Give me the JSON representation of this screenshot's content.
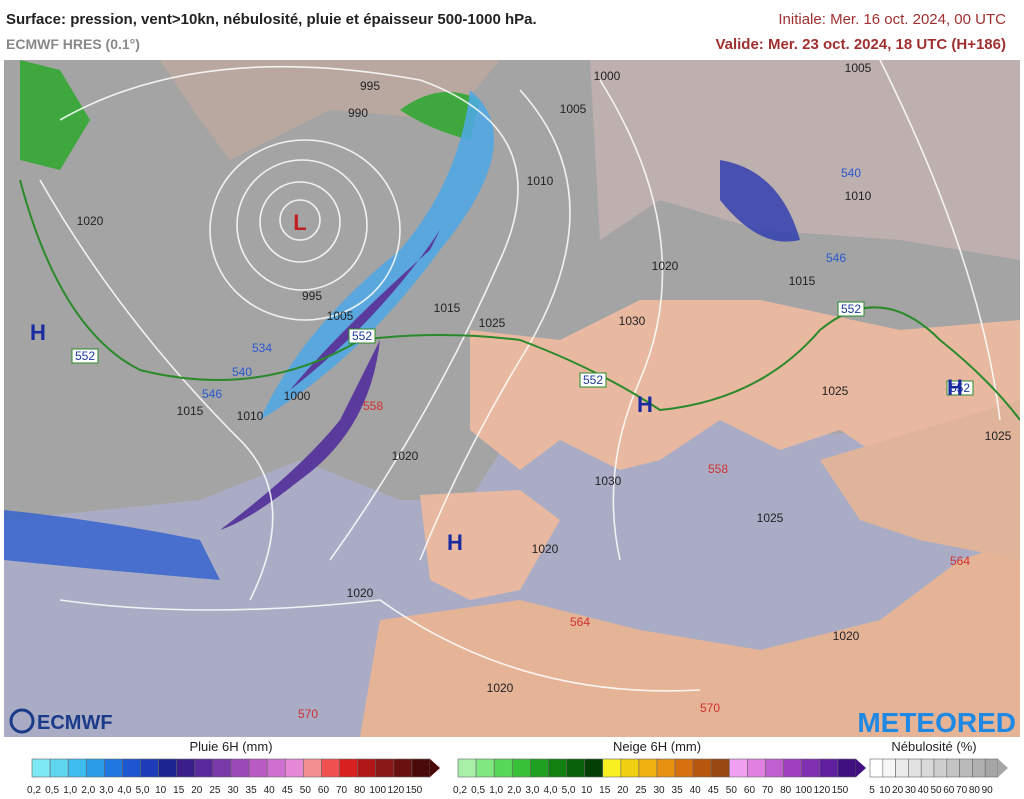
{
  "header": {
    "title": "Surface: pression, vent>10kn, nébulosité, pluie et épaisseur 500-1000 hPa.",
    "model": "ECMWF HRES (0.1°)",
    "initial": "Initiale: Mer. 16 oct. 2024, 00 UTC",
    "valid": "Valide: Mer. 23 oct. 2024, 18 UTC (H+186)"
  },
  "map": {
    "pressure_labels": [
      "995",
      "990",
      "1000",
      "1005",
      "1005",
      "1010",
      "1020",
      "1020",
      "1015",
      "995",
      "1015",
      "1025",
      "1030",
      "1005",
      "1010",
      "1015",
      "1010",
      "1000",
      "1020",
      "1030",
      "1025",
      "1025",
      "1020",
      "1020",
      "1020",
      "1020",
      "1025"
    ],
    "thickness_labels": [
      "552",
      "546",
      "540",
      "534",
      "552",
      "558",
      "552",
      "552",
      "546",
      "540",
      "558",
      "564",
      "564",
      "570",
      "570",
      "552"
    ],
    "centers": [
      "H",
      "H",
      "H",
      "H",
      "L"
    ]
  },
  "logos": {
    "left": "ECMWF",
    "right": "METEORED"
  },
  "legends": [
    {
      "title": "Pluie 6H (mm)",
      "labels": [
        "0,2",
        "0,5",
        "1,0",
        "2,0",
        "3,0",
        "4,0",
        "5,0",
        "10",
        "15",
        "20",
        "25",
        "30",
        "35",
        "40",
        "45",
        "50",
        "60",
        "70",
        "80",
        "100",
        "120",
        "150"
      ],
      "colors": [
        "#7fe8f5",
        "#5fd6f0",
        "#3dbdf0",
        "#2a9ce8",
        "#1f78e0",
        "#1e55d0",
        "#1e3bb8",
        "#1c2490",
        "#3a1f8a",
        "#5a2a9c",
        "#7a3aaa",
        "#9a4ab8",
        "#b85cc4",
        "#d070d0",
        "#e888d8",
        "#f49090",
        "#f05050",
        "#d82020",
        "#b01818",
        "#8a1818",
        "#6a1010",
        "#4a0a0a"
      ]
    },
    {
      "title": "Neige 6H (mm)",
      "labels": [
        "0,2",
        "0,5",
        "1,0",
        "2,0",
        "3,0",
        "4,0",
        "5,0",
        "10",
        "15",
        "20",
        "25",
        "30",
        "35",
        "40",
        "45",
        "50",
        "60",
        "70",
        "80",
        "100",
        "120",
        "150"
      ],
      "colors": [
        "#a8f0a8",
        "#80e880",
        "#58d858",
        "#38c038",
        "#20a020",
        "#108010",
        "#086008",
        "#044004",
        "#f8f020",
        "#f0d010",
        "#f0b010",
        "#e89010",
        "#d87010",
        "#b85810",
        "#984810",
        "#f0a0f0",
        "#e080e0",
        "#c060d0",
        "#a040c0",
        "#8030b0",
        "#6020a0",
        "#401080"
      ]
    },
    {
      "title": "Nébulosité (%)",
      "labels": [
        "5",
        "10",
        "20",
        "30",
        "40",
        "50",
        "60",
        "70",
        "80",
        "90"
      ],
      "colors": [
        "#ffffff",
        "#f6f6f6",
        "#ececec",
        "#e2e2e2",
        "#d8d8d8",
        "#cecece",
        "#c4c4c4",
        "#bababa",
        "#b0b0b0",
        "#a6a6a6"
      ]
    }
  ]
}
